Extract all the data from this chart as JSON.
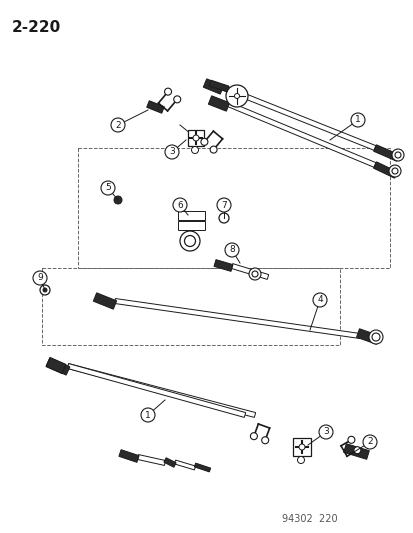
{
  "page_label": "2-220",
  "footer_label": "94302  220",
  "bg_color": "#ffffff",
  "line_color": "#1a1a1a",
  "dark_color": "#2a2a2a",
  "gray_color": "#888888",
  "fig_width": 4.14,
  "fig_height": 5.33,
  "dpi": 100,
  "page_label_fontsize": 11,
  "callout_fontsize": 6.5,
  "footer_fontsize": 7
}
